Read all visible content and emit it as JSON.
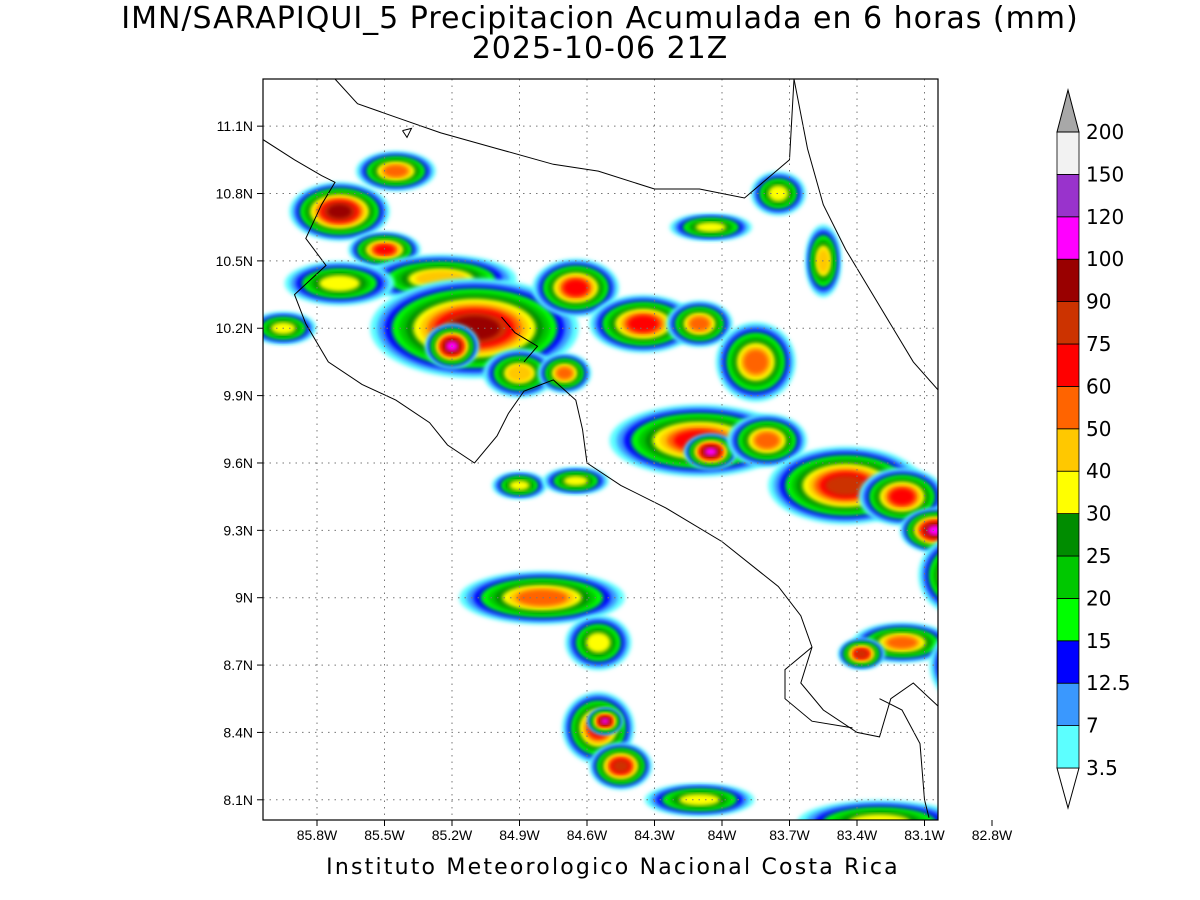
{
  "header": {
    "title_line1": "IMN/SARAPIQUI_5 Precipitacion Acumulada en 6 horas (mm)",
    "title_line2": "2025-10-06 21Z"
  },
  "map": {
    "x_axis_labels": [
      "85.8W",
      "85.5W",
      "85.2W",
      "84.9W",
      "84.6W",
      "84.3W",
      "84W",
      "83.7W",
      "83.4W",
      "83.1W",
      "82.8W"
    ],
    "y_axis_labels": [
      "11.1N",
      "10.8N",
      "10.5N",
      "10.2N",
      "9.9N",
      "9.6N",
      "9.3N",
      "9N",
      "8.7N",
      "8.4N",
      "8.1N"
    ],
    "lon_range_deg_east": [
      -86.04,
      -83.04
    ],
    "lat_range_deg_north": [
      8.01,
      11.31
    ],
    "gridlines": "dotted"
  },
  "colorbar": {
    "levels": [
      "3.5",
      "7",
      "12.5",
      "15",
      "20",
      "25",
      "30",
      "40",
      "50",
      "60",
      "75",
      "90",
      "100",
      "120",
      "150",
      "200"
    ],
    "colors": [
      "#5cffff",
      "#3a98fe",
      "#0000ff",
      "#00ff00",
      "#00c800",
      "#008c00",
      "#ffff00",
      "#ffc800",
      "#ff6400",
      "#ff0000",
      "#cc3300",
      "#990000",
      "#ff00ff",
      "#9933cc",
      "#f2f2f2",
      "#a8a8a8"
    ]
  },
  "footer": {
    "credit": "Instituto Meteorologico Nacional Costa Rica"
  }
}
